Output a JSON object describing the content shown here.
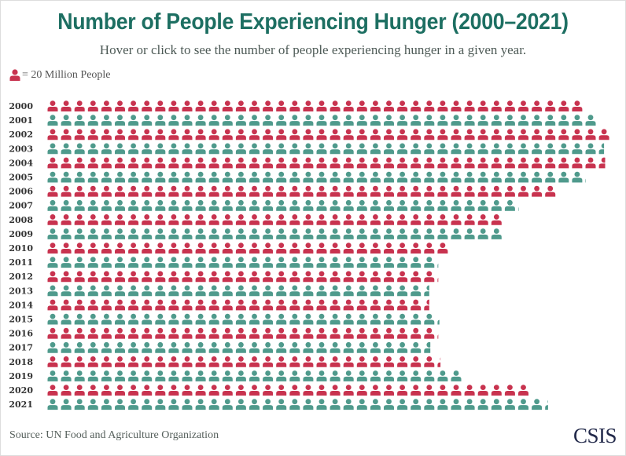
{
  "title": "Number of People Experiencing Hunger (2000–2021)",
  "subtitle": "Hover or click to see the number of people experiencing hunger in a given year.",
  "legend": {
    "label": "= 20 Million People",
    "icon": "person-icon"
  },
  "source": "Source: UN Food and Agriculture Organization",
  "logo": "CSIS",
  "colors": {
    "title": "#1d6f62",
    "odd_rows": "#c8334f",
    "even_rows": "#4f9a8c"
  },
  "chart_data": {
    "type": "pictogram",
    "unit_value_millions": 20,
    "unit_label": "= 20 Million People",
    "categories": [
      "2000",
      "2001",
      "2002",
      "2003",
      "2004",
      "2005",
      "2006",
      "2007",
      "2008",
      "2009",
      "2010",
      "2011",
      "2012",
      "2013",
      "2014",
      "2015",
      "2016",
      "2017",
      "2018",
      "2019",
      "2020",
      "2021"
    ],
    "values_millions": [
      800,
      820,
      840,
      830,
      832,
      801,
      760,
      701,
      680,
      680,
      600,
      582,
      582,
      570,
      570,
      584,
      582,
      572,
      586,
      620,
      720,
      746
    ],
    "series_colors": [
      "#c8334f",
      "#4f9a8c"
    ]
  }
}
